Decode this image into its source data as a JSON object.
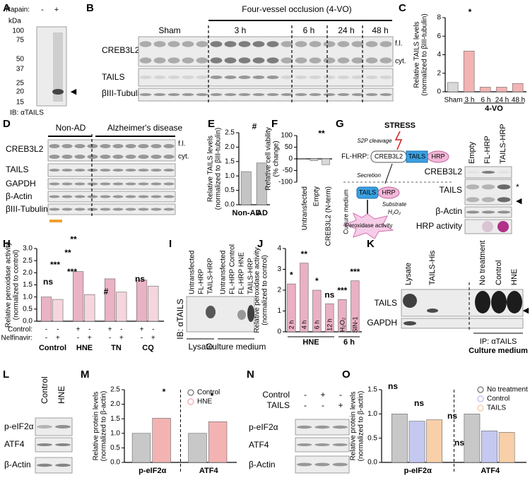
{
  "panel_a": {
    "letter": "A",
    "papain_label": "Papain:",
    "lanes": [
      "-",
      "+"
    ],
    "kda_label": "kDa",
    "markers": [
      100,
      75,
      50,
      37,
      25,
      20,
      15
    ],
    "antibody": "IB: αTAILS",
    "arrow": "◀"
  },
  "panel_b": {
    "letter": "B",
    "group_label": "Four-vessel occlusion (4-VO)",
    "lanes": [
      "Sham",
      "3 h",
      "6 h",
      "24 h",
      "48 h"
    ],
    "rows": [
      "CREB3L2",
      "TAILS",
      "βIII-Tubulin"
    ],
    "bands": [
      "f.l.",
      "cyt."
    ]
  },
  "panel_d": {
    "letter": "D",
    "groups": [
      "Non-AD",
      "Alzheimer's disease"
    ],
    "rows": [
      "CREB3L2",
      "TAILS",
      "GAPDH",
      "β-Actin",
      "βIII-Tubulin"
    ],
    "bands": [
      "f.l.",
      "cyt."
    ]
  },
  "panel_g": {
    "letter": "G",
    "stress": "STRESS",
    "cleavage": "S2P cleavage",
    "construct": "FL-HRP:",
    "domains": [
      "CREB3L2",
      "TAILS",
      "HRP"
    ],
    "secretion": "Secretion",
    "secreted": [
      "TAILS",
      "HRP"
    ],
    "substrate": "Substrate",
    "h2o2": "H₂O₂",
    "readout": "Peroxidase activity",
    "compartment": "Culture medium",
    "lanes": [
      "Empty",
      "FL-HRP",
      "TAILS-HRP"
    ],
    "rows": [
      "CREB3L2",
      "TAILS",
      "β-Actin",
      "HRP activity"
    ],
    "markers": [
      "*",
      "◀"
    ]
  },
  "panel_i": {
    "letter": "I",
    "antibody": "IB: αTAILS",
    "lanes": [
      "Untransfected",
      "FL-HRP",
      "TAILS-HRP",
      "Untransfected",
      "FL-HRP Control",
      "FL-HRP HNE",
      "TAILS-HRP"
    ],
    "groups": [
      "Lysate",
      "Culture medium"
    ]
  },
  "panel_k": {
    "letter": "K",
    "lanes": [
      "Lysate",
      "TAILS-His",
      "No treatment",
      "Control",
      "HNE"
    ],
    "rows": [
      "TAILS",
      "GAPDH"
    ],
    "ip": "IP: αTAILS",
    "group": "Culture medium",
    "arrow": "◀"
  },
  "panel_l": {
    "letter": "L",
    "lanes": [
      "Control",
      "HNE"
    ],
    "rows": [
      "p-eIF2α",
      "ATF4",
      "β-Actin"
    ]
  },
  "panel_n": {
    "letter": "N",
    "conditions": [
      {
        "name": "Control",
        "signs": [
          "-",
          "+",
          "-"
        ]
      },
      {
        "name": "TAILS",
        "signs": [
          "-",
          "-",
          "+"
        ]
      }
    ],
    "rows": [
      "p-eIF2α",
      "ATF4",
      "β-Actin"
    ]
  },
  "chart_data": [
    {
      "type": "bar",
      "letter": "C",
      "ylabel": [
        "Relative TAILS levels",
        "(normalized to βIII-tubulin)"
      ],
      "categories": [
        "Sham",
        "3 h",
        "6 h",
        "24 h",
        "48 h"
      ],
      "series": [
        {
          "values": [
            1.0,
            4.4,
            0.5,
            0.5,
            0.9
          ]
        }
      ],
      "colors": [
        "#d9d9d9",
        "#f4b3b3",
        "#f4b3b3",
        "#f4b3b3",
        "#f4b3b3"
      ],
      "ylim": [
        0,
        8
      ],
      "yticks": [
        0,
        2,
        4,
        6,
        8
      ],
      "annotations": [
        "*"
      ],
      "group_labels": [
        "4-VO"
      ]
    },
    {
      "type": "bar",
      "letter": "E",
      "ylabel": [
        "Relative TAILS levels",
        "(normalized to βIII-tubulin)"
      ],
      "categories": [
        "Non-AD",
        "AD"
      ],
      "series": [
        {
          "values": [
            1.15,
            1.45
          ]
        }
      ],
      "colors": [
        "#c4c4c4",
        "#c4c4c4"
      ],
      "ylim": [
        0,
        2.5
      ],
      "yticks": [
        {
          "value": 0,
          "label": "0.0"
        },
        0.5,
        {
          "value": 1,
          "label": "1.0"
        },
        1.5,
        {
          "value": 2,
          "label": "2.0"
        },
        2.5
      ],
      "annotations": [
        "#"
      ]
    },
    {
      "type": "bar",
      "letter": "F",
      "ylabel": [
        "Relative cell viability",
        "(% change)"
      ],
      "categories": [
        "Untransfected",
        "Empty",
        "CREB3L2 (N-term)"
      ],
      "series": [
        {
          "values": [
            0,
            -8,
            -25
          ]
        }
      ],
      "colors": [
        "#d9d9d9",
        "#d9d9d9",
        "#d9d9d9"
      ],
      "ylim": [
        -100,
        100
      ],
      "yticks": [
        -100,
        -50,
        0,
        50,
        100
      ],
      "annotations": [
        "**"
      ]
    },
    {
      "type": "bar",
      "letter": "H",
      "ylabel": [
        "Relative peroxidase activity",
        "(normalized to control)"
      ],
      "categories": [
        "Control",
        "HNE",
        "TN",
        "CQ"
      ],
      "series": [
        {
          "color": "#e9b3c3",
          "values": [
            1.0,
            2.05,
            1.75,
            1.7
          ]
        },
        {
          "color": "#f5d6de",
          "values": [
            0.9,
            1.1,
            1.2,
            1.45
          ]
        }
      ],
      "ylim": [
        0,
        3
      ],
      "yticks": [
        {
          "value": 0,
          "label": "0.0"
        },
        0.5,
        {
          "value": 1,
          "label": "1.0"
        },
        1.5,
        {
          "value": 2,
          "label": "2.0"
        },
        2.5,
        {
          "value": 3,
          "label": "3.0"
        }
      ],
      "sign_rows": [
        {
          "name": "Control:",
          "signs": [
            "-",
            "-",
            "+",
            "-",
            "+",
            "-",
            "+",
            "-"
          ]
        },
        {
          "name": "Nelfinavir:",
          "signs": [
            "-",
            "+",
            "-",
            "+",
            "-",
            "+",
            "-",
            "+"
          ]
        }
      ],
      "annotations": [
        "ns",
        "***",
        "***",
        "**",
        "**",
        "#",
        "ns"
      ]
    },
    {
      "type": "bar",
      "letter": "J",
      "ylabel": [
        "Relative peroxidase activity",
        "(normalized to control)"
      ],
      "categories": [
        "2 h",
        "4 h",
        "6 h",
        "12 h",
        "H₂O₂",
        "SIN-1"
      ],
      "series": [
        {
          "values": [
            2.3,
            3.3,
            2.0,
            1.35,
            1.55,
            2.45
          ]
        }
      ],
      "colors": [
        "#eab0c4",
        "#eab0c4",
        "#eab0c4",
        "#eab0c4",
        "#eab0c4",
        "#eab0c4"
      ],
      "ylim": [
        0,
        4
      ],
      "yticks": [
        0,
        1,
        2,
        3,
        4
      ],
      "annotations": [
        "*",
        "**",
        "*",
        "ns",
        "***",
        "***"
      ],
      "group_labels": [
        "HNE",
        "6 h"
      ]
    },
    {
      "type": "bar",
      "letter": "M",
      "ylabel": [
        "Relative protein levels",
        "(normalized to β-actin)"
      ],
      "categories": [
        "p-eIF2α",
        "ATF4"
      ],
      "series": [
        {
          "name": "Control",
          "color": "#c8c8c8",
          "values": [
            1.0,
            1.0
          ]
        },
        {
          "name": "HNE",
          "color": "#f4b3b3",
          "values": [
            1.52,
            1.4
          ]
        }
      ],
      "ylim": [
        0,
        2.5
      ],
      "yticks": [
        {
          "value": 0,
          "label": "0.0"
        },
        0.5,
        {
          "value": 1,
          "label": "1.0"
        },
        1.5,
        {
          "value": 2,
          "label": "2.0"
        },
        2.5
      ],
      "annotations": [
        "*",
        "*"
      ]
    },
    {
      "type": "bar",
      "letter": "O",
      "ylabel": [
        "Relative protein levels",
        "(normalized to β-actin)"
      ],
      "categories": [
        "p-eIF2α",
        "ATF4"
      ],
      "series": [
        {
          "name": "No treatment",
          "color": "#c8c8c8",
          "values": [
            1.0,
            1.0
          ]
        },
        {
          "name": "Control",
          "color": "#c5c8ef",
          "values": [
            0.85,
            0.65
          ]
        },
        {
          "name": "TAILS",
          "color": "#f8cfa8",
          "values": [
            0.88,
            0.62
          ]
        }
      ],
      "ylim": [
        0,
        1.5
      ],
      "yticks": [
        {
          "value": 0,
          "label": "0.0"
        },
        0.5,
        {
          "value": 1,
          "label": "1.0"
        },
        1.5
      ],
      "annotations": [
        "ns",
        "ns",
        "ns",
        "ns"
      ]
    }
  ]
}
